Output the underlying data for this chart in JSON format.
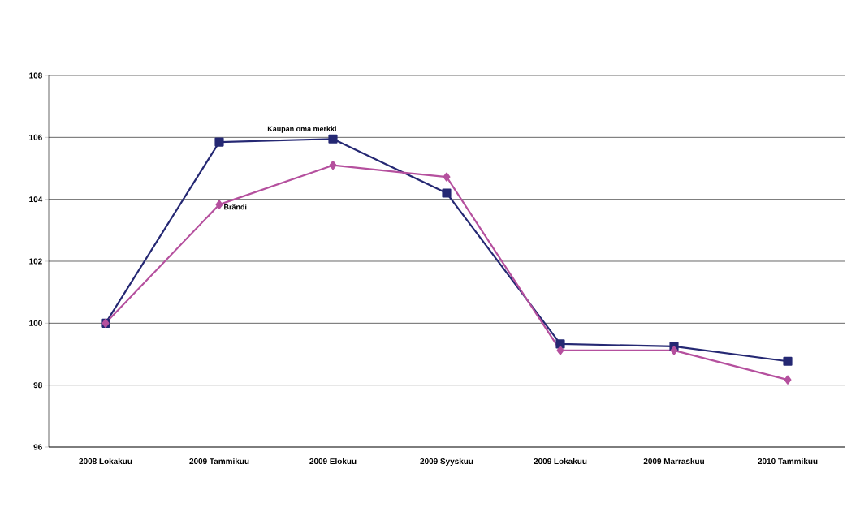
{
  "chart_data": {
    "type": "line",
    "categories": [
      "2008 Lokakuu",
      "2009 Tammikuu",
      "2009 Elokuu",
      "2009 Syyskuu",
      "2009 Lokakuu",
      "2009 Marraskuu",
      "2010 Tammikuu"
    ],
    "series": [
      {
        "name": "Kaupan oma merkki",
        "color": "#252873",
        "marker": "square",
        "values": [
          100,
          105.85,
          105.95,
          104.2,
          99.33,
          99.25,
          98.77
        ]
      },
      {
        "name": "Brändi",
        "color": "#b5509e",
        "marker": "diamond",
        "values": [
          100,
          103.83,
          105.1,
          104.72,
          99.12,
          99.12,
          98.17
        ]
      }
    ],
    "ylim": [
      96,
      108
    ],
    "yticks": [
      96,
      98,
      100,
      102,
      104,
      106,
      108
    ],
    "grid": "y",
    "legend": false
  }
}
